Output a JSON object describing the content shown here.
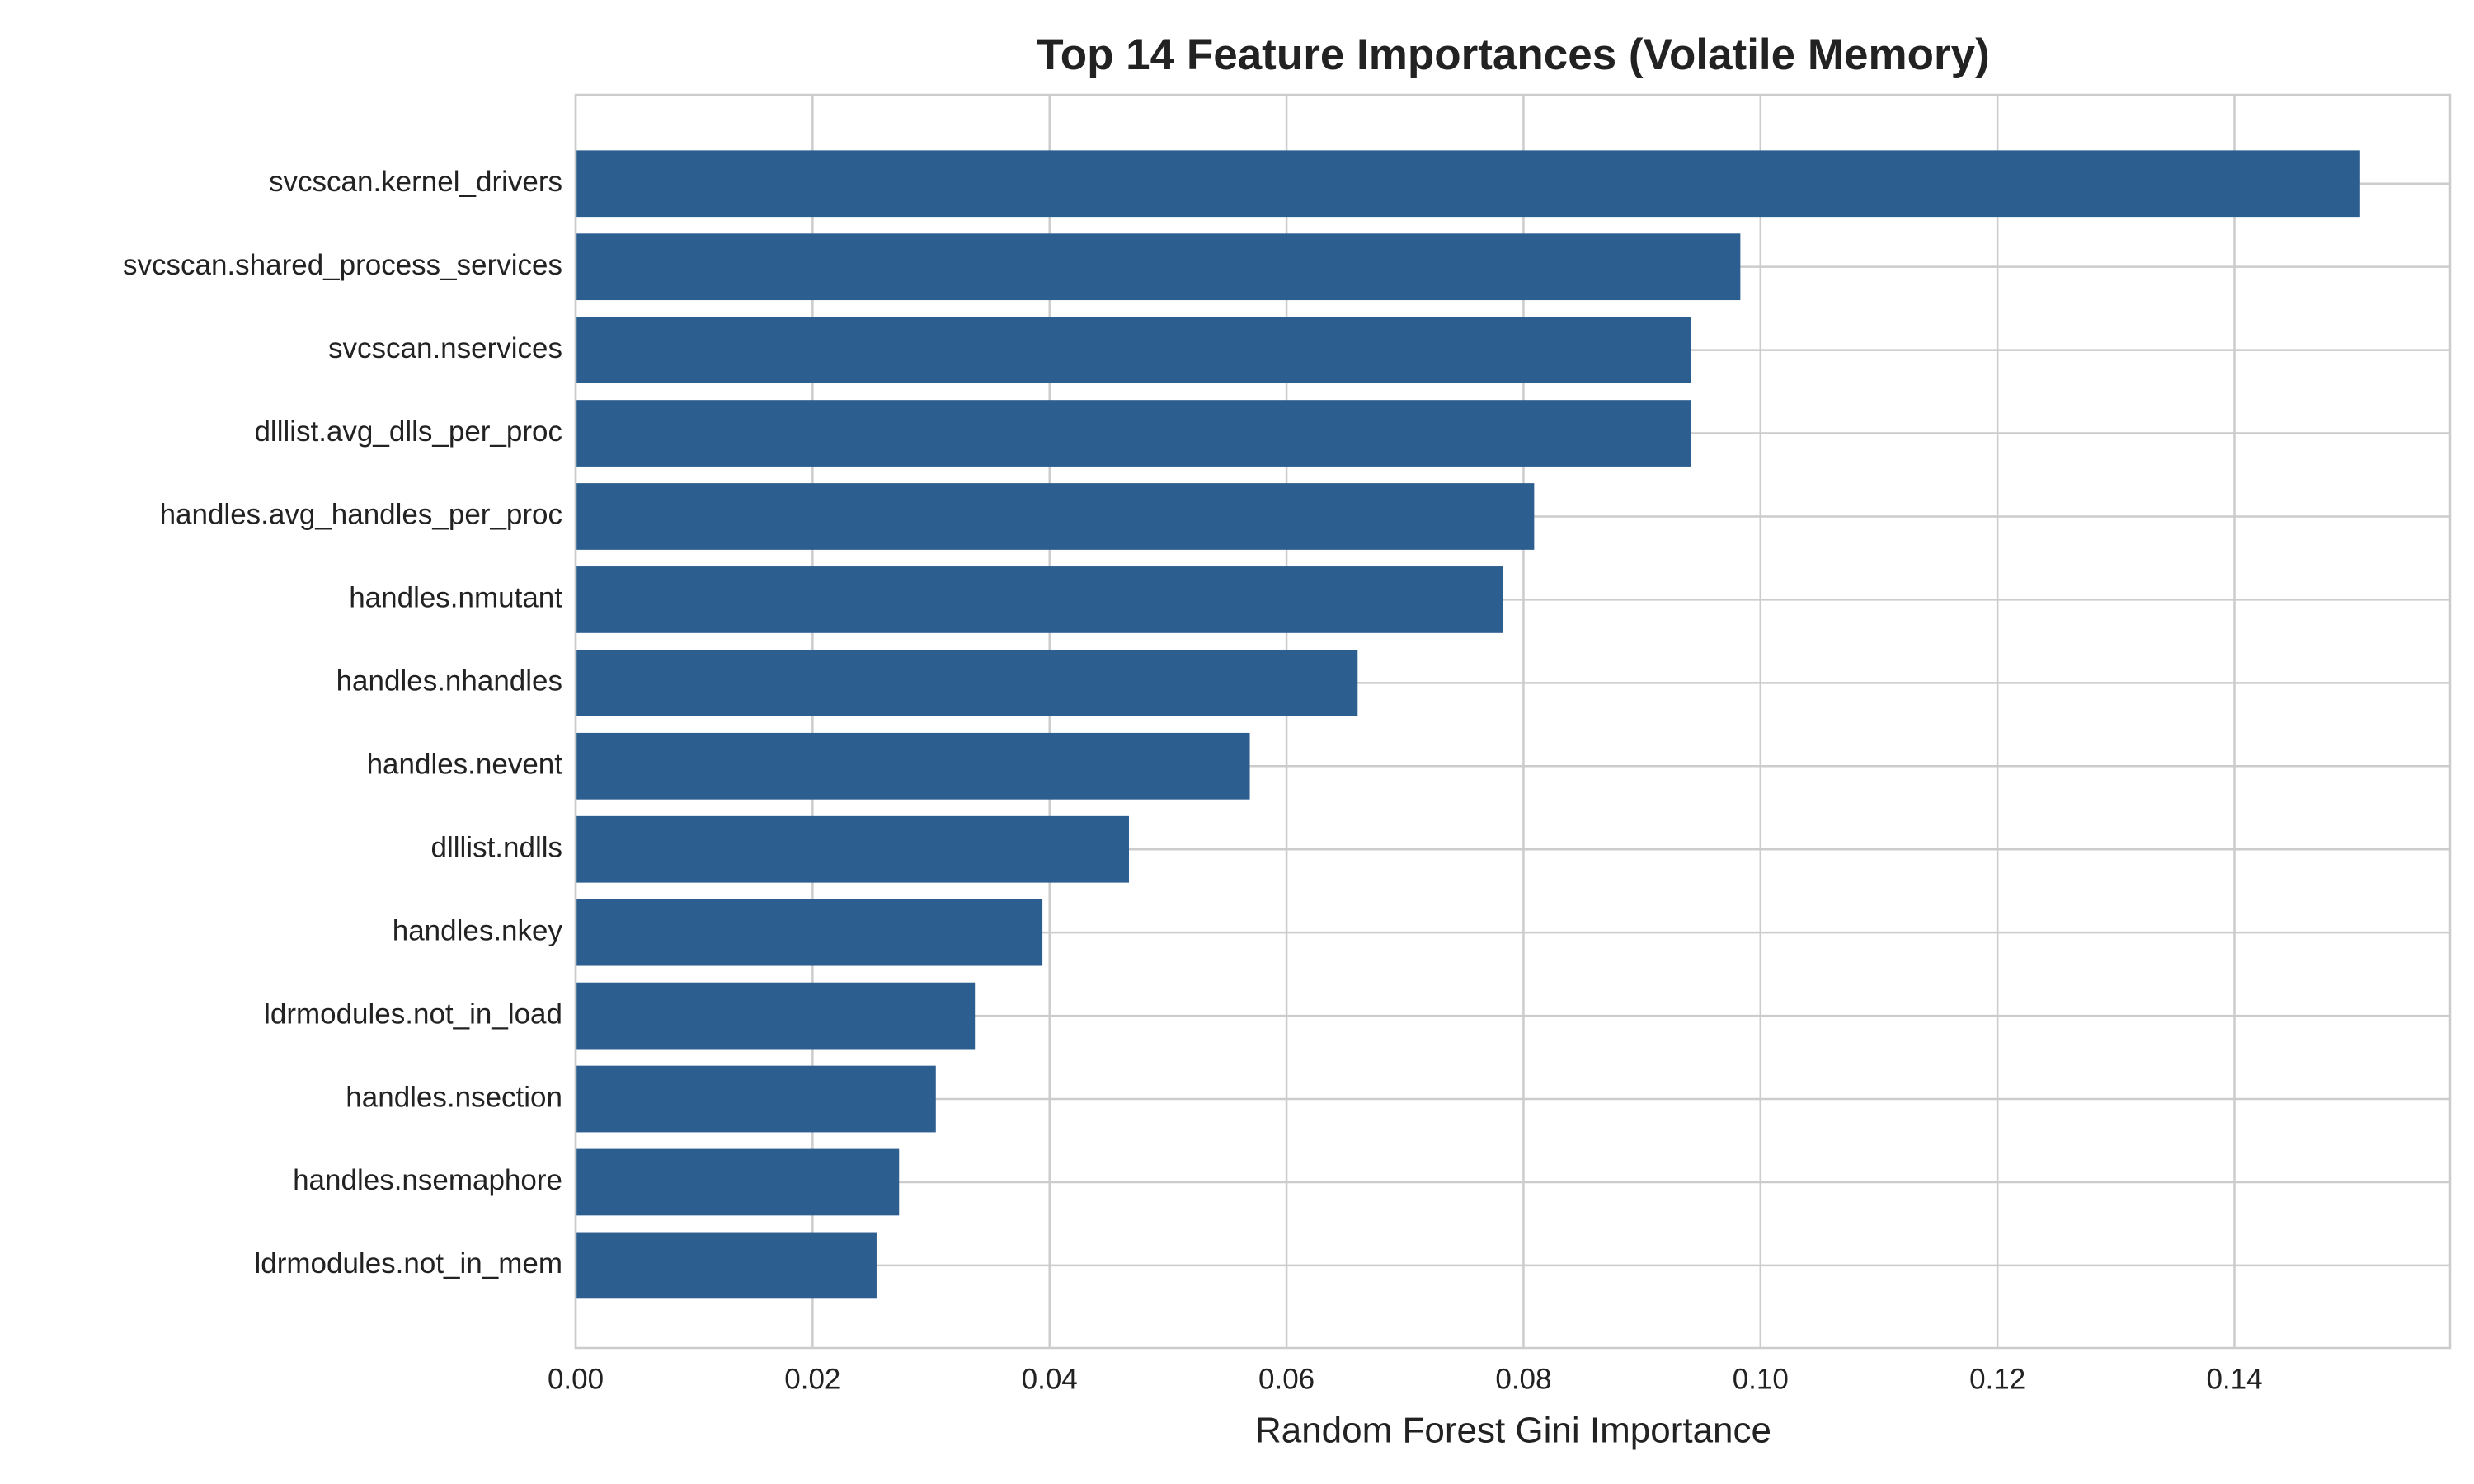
{
  "chart_data": {
    "type": "barh",
    "title": "Top 14 Feature Importances (Volatile Memory)",
    "x_label": "Random Forest Gini Importance",
    "categories": [
      "svcscan.kernel_drivers",
      "svcscan.shared_process_services",
      "svcscan.nservices",
      "dlllist.avg_dlls_per_proc",
      "handles.avg_handles_per_proc",
      "handles.nmutant",
      "handles.nhandles",
      "handles.nevent",
      "dlllist.ndlls",
      "handles.nkey",
      "ldrmodules.not_in_load",
      "handles.nsection",
      "handles.nsemaphore",
      "ldrmodules.not_in_mem"
    ],
    "values": [
      0.1506,
      0.0983,
      0.0941,
      0.0941,
      0.0809,
      0.0783,
      0.066,
      0.0569,
      0.0467,
      0.0394,
      0.0337,
      0.0304,
      0.0273,
      0.0254
    ],
    "color": "#2c5e8f",
    "xlim": [
      0,
      0.1582
    ],
    "xticks": [
      {
        "value": 0,
        "label": "0.00"
      },
      {
        "value": 0.02,
        "label": "0.02"
      },
      {
        "value": 0.04,
        "label": "0.04"
      },
      {
        "value": 0.06,
        "label": "0.06"
      },
      {
        "value": 0.08,
        "label": "0.08"
      },
      {
        "value": 0.1,
        "label": "0.10"
      },
      {
        "value": 0.12,
        "label": "0.12"
      },
      {
        "value": 0.14,
        "label": "0.14"
      }
    ],
    "grid": true
  }
}
